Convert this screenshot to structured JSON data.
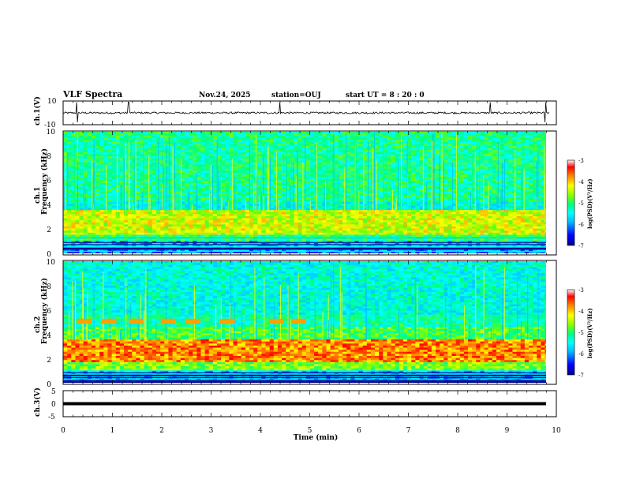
{
  "header": {
    "title": "VLF Spectra",
    "date": "Nov.24, 2025",
    "station": "station=OUJ",
    "start": "start  UT =  8 : 20 : 0"
  },
  "colors": {
    "colormap": [
      "#00008b",
      "#0000ff",
      "#00bfff",
      "#00ffff",
      "#00ff80",
      "#80ff00",
      "#ffff00",
      "#ff8000",
      "#ff0000",
      "#ffffff"
    ],
    "trace": "#000000",
    "axes": "#000000"
  },
  "chart_data": [
    {
      "id": "ch1-waveform",
      "type": "line",
      "ylabel": "ch.1(V)",
      "ylim": [
        -10,
        10
      ],
      "yticks": [
        "10",
        "-10"
      ],
      "xlim": [
        0,
        10
      ],
      "description_values": {
        "baseline": 0,
        "spike_times_min": [
          0.28,
          1.33,
          4.39,
          8.66,
          9.78
        ]
      }
    },
    {
      "id": "ch1-spectrogram",
      "type": "heatmap",
      "ylabel_line1": "ch.1",
      "ylabel_line2": "Frequency  (kHz)",
      "ylim": [
        0,
        10
      ],
      "yticks": [
        "0",
        "2",
        "4",
        "6",
        "8",
        "10"
      ],
      "xlim": [
        0,
        9.85
      ],
      "colorbar": {
        "label": "log(PSD)(V²/Hz)",
        "range": [
          -7,
          -3
        ],
        "ticks": [
          "-3",
          "-4",
          "-5",
          "-6",
          "-7"
        ]
      },
      "bands_khz": [
        {
          "from": 0,
          "to": 0.4,
          "level": -6.3
        },
        {
          "from": 0.4,
          "to": 1.2,
          "level": -6.0
        },
        {
          "from": 1.2,
          "to": 1.6,
          "level": -5.2
        },
        {
          "from": 1.6,
          "to": 3.6,
          "level": -4.5
        },
        {
          "from": 3.6,
          "to": 4.4,
          "level": -5.6
        },
        {
          "from": 4.4,
          "to": 10,
          "level": -5.3
        }
      ]
    },
    {
      "id": "ch2-spectrogram",
      "type": "heatmap",
      "ylabel_line1": "ch.2",
      "ylabel_line2": "Frequency  (kHz)",
      "ylim": [
        0,
        10
      ],
      "yticks": [
        "0",
        "2",
        "4",
        "6",
        "8",
        "10"
      ],
      "xlim": [
        0,
        9.85
      ],
      "colorbar": {
        "label": "log(PSD)(V²/Hz)",
        "range": [
          -7,
          -3
        ],
        "ticks": [
          "-3",
          "-4",
          "-5",
          "-6",
          "-7"
        ]
      },
      "bands_khz": [
        {
          "from": 0,
          "to": 0.4,
          "level": -6.5
        },
        {
          "from": 0.4,
          "to": 1.2,
          "level": -6.0
        },
        {
          "from": 1.2,
          "to": 1.8,
          "level": -4.8
        },
        {
          "from": 1.8,
          "to": 3.6,
          "level": -3.9
        },
        {
          "from": 3.6,
          "to": 4.6,
          "level": -5.0
        },
        {
          "from": 4.6,
          "to": 5.6,
          "level": -5.4
        },
        {
          "from": 5.6,
          "to": 10,
          "level": -5.6
        }
      ],
      "bursts": {
        "freq_khz": [
          4.9,
          5.3
        ],
        "times_min": [
          0.4,
          0.9,
          1.45,
          2.1,
          2.6,
          3.3,
          4.3,
          4.75
        ],
        "level": -4.0
      }
    },
    {
      "id": "ch3-waveform",
      "type": "line",
      "ylabel": "ch.3(V)",
      "ylim": [
        -5,
        5
      ],
      "yticks": [
        "5",
        "0",
        "-5"
      ],
      "xlim": [
        0,
        10
      ],
      "description_values": {
        "baseline": 0
      }
    }
  ],
  "xaxis": {
    "label": "Time  (min)",
    "ticks": [
      "0",
      "1",
      "2",
      "3",
      "4",
      "5",
      "6",
      "7",
      "8",
      "9",
      "10"
    ]
  }
}
